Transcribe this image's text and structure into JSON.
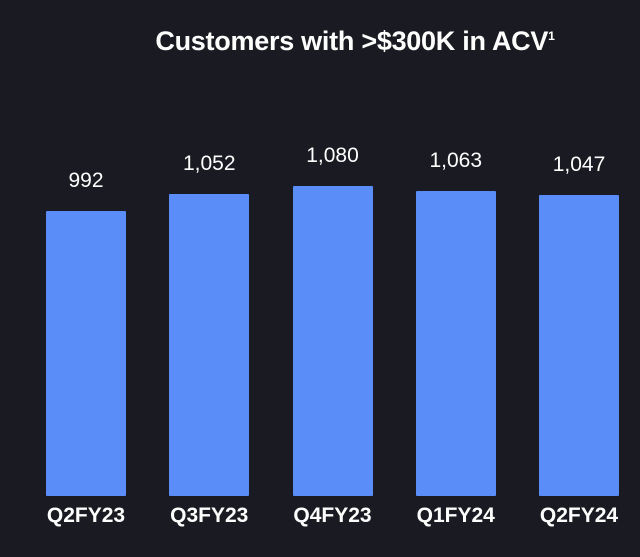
{
  "page": {
    "background_color": "#1a1b22",
    "text_color": "#ffffff"
  },
  "chart_data": {
    "type": "bar",
    "title": "Customers with >$300K in ACV",
    "title_superscript": "1",
    "categories": [
      "Q2FY23",
      "Q3FY23",
      "Q4FY23",
      "Q1FY24",
      "Q2FY24"
    ],
    "values": [
      992,
      1052,
      1080,
      1063,
      1047
    ],
    "value_labels": [
      "992",
      "1,052",
      "1,080",
      "1,063",
      "1,047"
    ],
    "xlabel": "",
    "ylabel": "",
    "ylim": [
      0,
      1080
    ],
    "grid": false,
    "legend": false,
    "bar_color": "#5b8df8",
    "value_label_color": "#ffffff",
    "axis_label_color": "#ffffff",
    "background_color": "#1a1b22"
  }
}
